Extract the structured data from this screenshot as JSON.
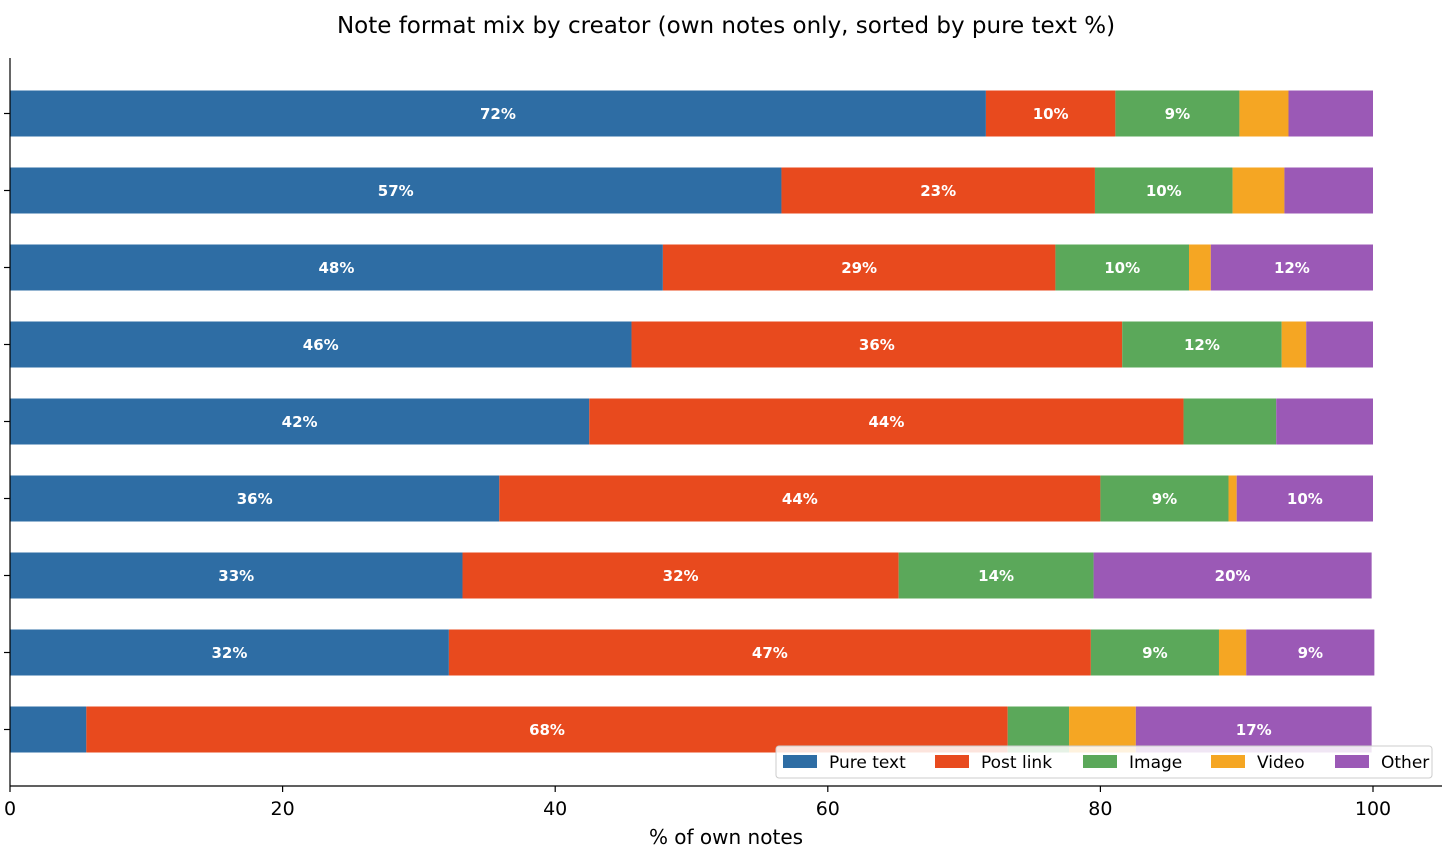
{
  "chart_data": {
    "type": "bar",
    "orientation": "horizontal",
    "stacked": true,
    "title": "Note format mix by creator (own notes only, sorted by pure text %)",
    "xlabel": "% of own notes",
    "ylabel": "",
    "xlim": [
      0,
      105
    ],
    "xticks": [
      "0",
      "20",
      "40",
      "60",
      "80",
      "100"
    ],
    "categories": [
      "",
      "",
      "",
      "",
      "",
      "",
      "",
      "",
      ""
    ],
    "series": [
      {
        "name": "Pure text",
        "color": "#2e6da4",
        "values": [
          71.6,
          56.6,
          47.9,
          45.6,
          42.5,
          35.9,
          33.2,
          32.2,
          5.6
        ]
      },
      {
        "name": "Post link",
        "color": "#e84a1e",
        "values": [
          9.5,
          23.0,
          28.8,
          36.0,
          43.6,
          44.1,
          32.0,
          47.1,
          67.6
        ]
      },
      {
        "name": "Image",
        "color": "#5ba85a",
        "values": [
          9.1,
          10.1,
          9.8,
          11.7,
          6.8,
          9.4,
          14.3,
          9.4,
          4.5
        ]
      },
      {
        "name": "Video",
        "color": "#f5a623",
        "values": [
          3.6,
          3.8,
          1.6,
          1.8,
          0.0,
          0.6,
          0.0,
          2.0,
          4.9
        ]
      },
      {
        "name": "Other",
        "color": "#9b59b6",
        "values": [
          6.2,
          6.5,
          11.9,
          4.9,
          7.1,
          10.0,
          20.4,
          9.4,
          17.3
        ]
      }
    ],
    "labels": [
      [
        "72%",
        "10%",
        "9%",
        "",
        ""
      ],
      [
        "57%",
        "23%",
        "10%",
        "",
        ""
      ],
      [
        "48%",
        "29%",
        "10%",
        "",
        "12%"
      ],
      [
        "46%",
        "36%",
        "12%",
        "",
        ""
      ],
      [
        "42%",
        "44%",
        "",
        "",
        ""
      ],
      [
        "36%",
        "44%",
        "9%",
        "",
        "10%"
      ],
      [
        "33%",
        "32%",
        "14%",
        "",
        "20%"
      ],
      [
        "32%",
        "47%",
        "9%",
        "",
        "9%"
      ],
      [
        "",
        "68%",
        "",
        "",
        "17%"
      ]
    ],
    "legend": {
      "position": "lower-right",
      "entries": [
        "Pure text",
        "Post link",
        "Image",
        "Video",
        "Other"
      ]
    },
    "grid": false
  }
}
